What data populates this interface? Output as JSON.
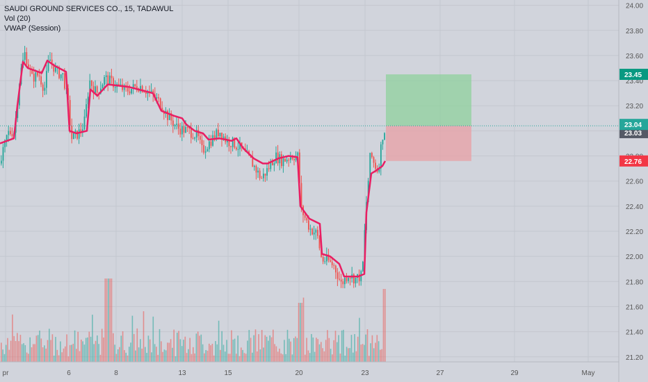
{
  "header": {
    "title": "SAUDI GROUND SERVICES CO., 15, TADAWUL",
    "indicator_vol": "Vol (20)",
    "indicator_vwap": "VWAP (Session)"
  },
  "colors": {
    "background": "#d1d4dc",
    "grid": "#c4c7cf",
    "up": "#26a69a",
    "down": "#ef5350",
    "vwap": "#e91e63",
    "target_zone": "#8fd19e",
    "stop_zone": "#e8a0a6",
    "last_price_line": "#26a69a",
    "target_badge": "#089981",
    "stop_badge": "#f23645",
    "current_badge": "#26a69a",
    "prev_badge": "#555a66"
  },
  "price_axis": {
    "ticks": [
      "24.00",
      "23.80",
      "23.60",
      "23.40",
      "23.20",
      "23.00",
      "22.80",
      "22.60",
      "22.40",
      "22.20",
      "22.00",
      "21.80",
      "21.60",
      "21.40",
      "21.20"
    ]
  },
  "time_axis": {
    "ticks": [
      "pr",
      "6",
      "8",
      "13",
      "15",
      "20",
      "23",
      "27",
      "29",
      "May"
    ]
  },
  "badges": {
    "target": "23.45",
    "current": "23.04",
    "previous": "23.03",
    "stop": "22.76"
  },
  "chart_data": {
    "type": "candlestick",
    "title": "SAUDI GROUND SERVICES CO., 15, TADAWUL",
    "ylim": [
      21.16,
      24.02
    ],
    "price_path": [
      [
        0,
        22.74
      ],
      [
        10,
        22.98
      ],
      [
        20,
        23.0
      ],
      [
        28,
        23.45
      ],
      [
        35,
        23.62
      ],
      [
        45,
        23.42
      ],
      [
        55,
        23.45
      ],
      [
        63,
        23.33
      ],
      [
        70,
        23.58
      ],
      [
        80,
        23.47
      ],
      [
        90,
        23.44
      ],
      [
        97,
        23.22
      ],
      [
        102,
        22.94
      ],
      [
        112,
        22.98
      ],
      [
        120,
        23.05
      ],
      [
        128,
        23.4
      ],
      [
        138,
        23.3
      ],
      [
        150,
        23.42
      ],
      [
        165,
        23.37
      ],
      [
        180,
        23.32
      ],
      [
        200,
        23.36
      ],
      [
        215,
        23.3
      ],
      [
        230,
        23.22
      ],
      [
        240,
        23.12
      ],
      [
        255,
        23.02
      ],
      [
        270,
        23.0
      ],
      [
        283,
        22.96
      ],
      [
        290,
        22.84
      ],
      [
        305,
        22.94
      ],
      [
        315,
        23.0
      ],
      [
        325,
        22.92
      ],
      [
        335,
        22.9
      ],
      [
        345,
        22.86
      ],
      [
        360,
        22.76
      ],
      [
        375,
        22.62
      ],
      [
        385,
        22.7
      ],
      [
        395,
        22.8
      ],
      [
        405,
        22.76
      ],
      [
        418,
        22.8
      ],
      [
        428,
        22.8
      ],
      [
        432,
        22.38
      ],
      [
        445,
        22.22
      ],
      [
        455,
        22.18
      ],
      [
        462,
        21.97
      ],
      [
        470,
        21.97
      ],
      [
        480,
        21.92
      ],
      [
        490,
        21.78
      ],
      [
        500,
        21.86
      ],
      [
        510,
        21.82
      ],
      [
        520,
        21.85
      ],
      [
        526,
        22.42
      ],
      [
        532,
        22.82
      ],
      [
        537,
        22.74
      ],
      [
        543,
        22.68
      ],
      [
        549,
        22.96
      ],
      [
        554,
        23.03
      ]
    ],
    "vwap_path": [
      [
        0,
        22.9
      ],
      [
        20,
        22.94
      ],
      [
        25,
        23.2
      ],
      [
        33,
        23.55
      ],
      [
        40,
        23.5
      ],
      [
        60,
        23.46
      ],
      [
        68,
        23.56
      ],
      [
        78,
        23.52
      ],
      [
        95,
        23.47
      ],
      [
        100,
        23.0
      ],
      [
        110,
        22.98
      ],
      [
        125,
        23.0
      ],
      [
        130,
        23.33
      ],
      [
        140,
        23.28
      ],
      [
        155,
        23.37
      ],
      [
        185,
        23.35
      ],
      [
        220,
        23.3
      ],
      [
        232,
        23.16
      ],
      [
        250,
        23.12
      ],
      [
        262,
        23.1
      ],
      [
        268,
        23.05
      ],
      [
        280,
        23.0
      ],
      [
        292,
        22.98
      ],
      [
        300,
        22.93
      ],
      [
        315,
        22.94
      ],
      [
        325,
        22.93
      ],
      [
        333,
        22.92
      ],
      [
        340,
        22.94
      ],
      [
        350,
        22.86
      ],
      [
        365,
        22.78
      ],
      [
        378,
        22.74
      ],
      [
        385,
        22.74
      ],
      [
        400,
        22.78
      ],
      [
        415,
        22.8
      ],
      [
        428,
        22.79
      ],
      [
        432,
        22.4
      ],
      [
        445,
        22.3
      ],
      [
        460,
        22.26
      ],
      [
        463,
        22.02
      ],
      [
        475,
        22.0
      ],
      [
        488,
        21.94
      ],
      [
        495,
        21.84
      ],
      [
        515,
        21.84
      ],
      [
        524,
        21.86
      ],
      [
        527,
        22.35
      ],
      [
        534,
        22.66
      ],
      [
        540,
        22.68
      ],
      [
        550,
        22.72
      ],
      [
        554,
        22.76
      ]
    ],
    "volume_seed": 7,
    "position": {
      "entry": 23.04,
      "target": 23.45,
      "stop": 22.76,
      "start_date": "23",
      "end_date": "27"
    },
    "last_price": 23.04,
    "xlabel": "",
    "ylabel": "",
    "grid": true
  }
}
